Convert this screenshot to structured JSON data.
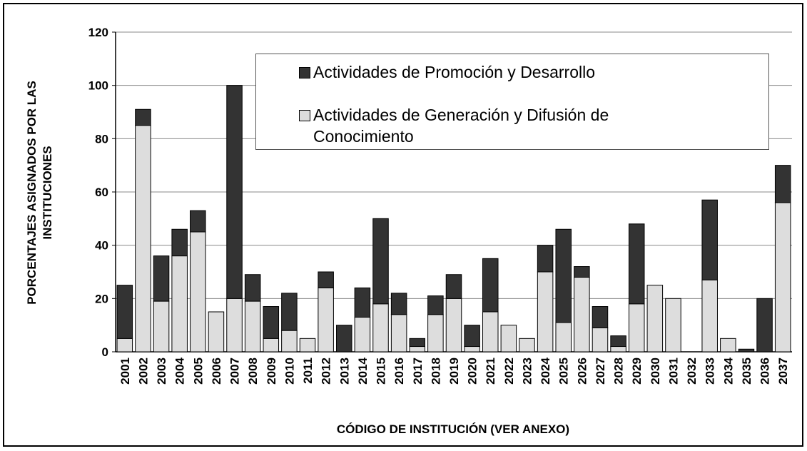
{
  "chart_data": {
    "type": "stacked_bar",
    "y_label": "PORCENTAJES ASIGNADOS POR LAS INSTITUCIONES",
    "x_label": "CÓDIGO DE INSTITUCIÓN (VER ANEXO)",
    "categories": [
      "2001",
      "2002",
      "2003",
      "2004",
      "2005",
      "2006",
      "2007",
      "2008",
      "2009",
      "2010",
      "2011",
      "2012",
      "2013",
      "2014",
      "2015",
      "2016",
      "2017",
      "2018",
      "2019",
      "2020",
      "2021",
      "2022",
      "2023",
      "2024",
      "2025",
      "2026",
      "2027",
      "2028",
      "2029",
      "2030",
      "2031",
      "2032",
      "2033",
      "2034",
      "2035",
      "2036",
      "2037"
    ],
    "series": [
      {
        "name": "Actividades de Promoción y Desarrollo",
        "color": "#333333",
        "values": [
          20,
          6,
          17,
          10,
          8,
          0,
          80,
          10,
          12,
          14,
          0,
          6,
          10,
          11,
          32,
          8,
          3,
          7,
          9,
          8,
          20,
          0,
          0,
          10,
          35,
          4,
          8,
          4,
          30,
          0,
          0,
          0,
          30,
          0,
          1,
          20,
          14
        ]
      },
      {
        "name": "Actividades de Generación y Difusión de Conocimiento",
        "color": "#dddddd",
        "values": [
          5,
          85,
          19,
          36,
          45,
          15,
          20,
          19,
          5,
          8,
          5,
          24,
          0,
          13,
          18,
          14,
          2,
          14,
          20,
          2,
          15,
          10,
          5,
          30,
          11,
          28,
          9,
          2,
          18,
          25,
          20,
          0,
          27,
          5,
          0,
          0,
          56
        ]
      }
    ],
    "stack_order": [
      1,
      0
    ],
    "ylim": [
      0,
      120
    ],
    "yticks": [
      0,
      20,
      40,
      60,
      80,
      100,
      120
    ],
    "grid": true
  }
}
